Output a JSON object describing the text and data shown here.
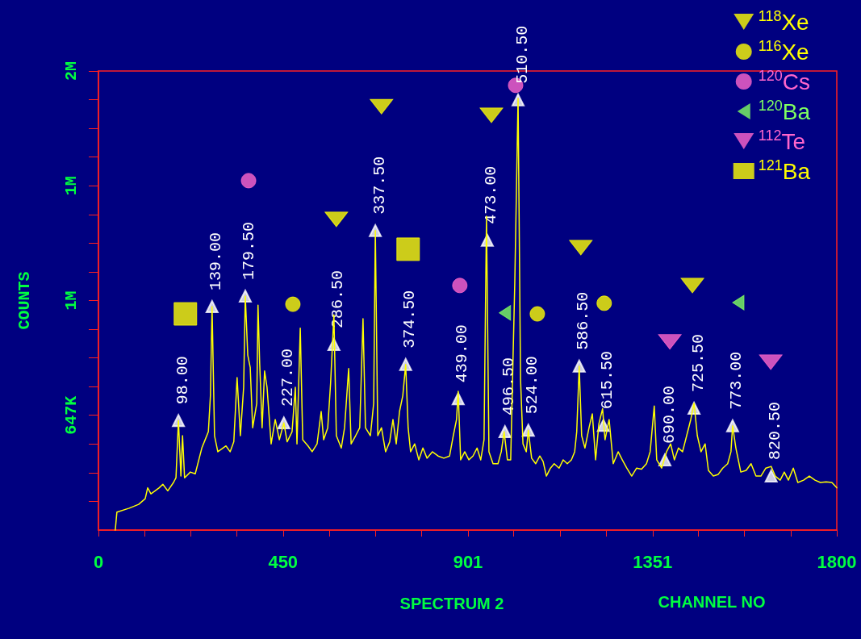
{
  "chart_data": {
    "type": "line",
    "xlabel": "CHANNEL NO",
    "ylabel": "COUNTS",
    "log": "y",
    "xlim": [
      0,
      1800
    ],
    "xticks": [
      0,
      {
        "value": 112.5,
        "label": null
      },
      {
        "value": 225,
        "label": null
      },
      {
        "value": 337.5,
        "label": null
      },
      450,
      {
        "value": 562.5,
        "label": null
      },
      {
        "value": 675,
        "label": null
      },
      {
        "value": 787.5,
        "label": null
      },
      901,
      {
        "value": 1012.5,
        "label": null
      },
      {
        "value": 1125,
        "label": null
      },
      {
        "value": 1237.5,
        "label": null
      },
      1351,
      {
        "value": 1462.5,
        "label": null
      },
      {
        "value": 1575,
        "label": null
      },
      {
        "value": 1687.5,
        "label": null
      },
      1800
    ],
    "ylim": [
      444000,
      2000000
    ],
    "yticks": [
      {
        "value": 487800,
        "label": null
      },
      {
        "value": 535900,
        "label": null
      },
      {
        "value": 588900,
        "label": null
      },
      {
        "value": 647000,
        "label": "647K"
      },
      {
        "value": 710800,
        "label": null
      },
      {
        "value": 780900,
        "label": null
      },
      {
        "value": 857900,
        "label": null
      },
      {
        "value": 942500,
        "label": "1M"
      },
      {
        "value": 1035400,
        "label": null
      },
      {
        "value": 1137500,
        "label": null
      },
      {
        "value": 1249700,
        "label": null
      },
      {
        "value": 1372900,
        "label": "1M"
      },
      {
        "value": 1508300,
        "label": null
      },
      {
        "value": 1657000,
        "label": null
      },
      {
        "value": 1820400,
        "label": null
      },
      {
        "value": 2000000,
        "label": "2M"
      }
    ],
    "grid": false,
    "legend": "top right",
    "series": [
      {
        "color": "#ffff00",
        "marker": "none",
        "line_style": "solid",
        "x": [
          41,
          45,
          75,
          98,
          114,
          120,
          128,
          148,
          157,
          169,
          183,
          189,
          195,
          201,
          205,
          210,
          224,
          236,
          252,
          268,
          273,
          277,
          283,
          291,
          311,
          321,
          330,
          338,
          346,
          354,
          358,
          364,
          370,
          376,
          386,
          389,
          393,
          399,
          405,
          411,
          421,
          431,
          441,
          452,
          460,
          472,
          480,
          484,
          492,
          498,
          511,
          521,
          533,
          543,
          549,
          559,
          566,
          574,
          580,
          592,
          600,
          610,
          616,
          627,
          637,
          645,
          651,
          663,
          671,
          675,
          681,
          690,
          700,
          710,
          718,
          726,
          734,
          742,
          749,
          755,
          761,
          771,
          781,
          791,
          801,
          814,
          828,
          842,
          856,
          865,
          873,
          877,
          883,
          893,
          903,
          913,
          923,
          932,
          940,
          946,
          952,
          962,
          974,
          982,
          989,
          997,
          1005,
          1015,
          1023,
          1029,
          1035,
          1043,
          1048,
          1056,
          1066,
          1076,
          1084,
          1092,
          1102,
          1111,
          1123,
          1133,
          1143,
          1153,
          1161,
          1166,
          1172,
          1178,
          1186,
          1196,
          1204,
          1212,
          1220,
          1229,
          1235,
          1245,
          1255,
          1267,
          1277,
          1288,
          1300,
          1312,
          1324,
          1336,
          1345,
          1355,
          1361,
          1373,
          1385,
          1395,
          1404,
          1414,
          1424,
          1434,
          1444,
          1452,
          1460,
          1469,
          1479,
          1487,
          1499,
          1511,
          1522,
          1534,
          1542,
          1546,
          1554,
          1566,
          1579,
          1591,
          1603,
          1615,
          1627,
          1640,
          1650,
          1662,
          1672,
          1682,
          1694,
          1705,
          1719,
          1733,
          1747,
          1760,
          1774,
          1788,
          1800
        ],
        "values": [
          444000,
          471000,
          477000,
          483000,
          492000,
          510000,
          500000,
          510000,
          516000,
          505000,
          519000,
          527000,
          636000,
          530000,
          605000,
          527000,
          537000,
          534000,
          581000,
          613000,
          690000,
          924000,
          605000,
          574000,
          585000,
          574000,
          593000,
          732000,
          605000,
          709000,
          956000,
          788000,
          757000,
          621000,
          673000,
          928000,
          768000,
          621000,
          748000,
          709000,
          589000,
          638000,
          597000,
          631000,
          593000,
          613000,
          709000,
          589000,
          861000,
          597000,
          585000,
          574000,
          589000,
          655000,
          597000,
          621000,
          719000,
          899000,
          605000,
          581000,
          621000,
          754000,
          589000,
          605000,
          621000,
          888000,
          621000,
          605000,
          673000,
          1185000,
          605000,
          621000,
          574000,
          593000,
          638000,
          589000,
          655000,
          690000,
          764000,
          621000,
          574000,
          589000,
          559000,
          581000,
          562000,
          574000,
          566000,
          562000,
          566000,
          605000,
          638000,
          700000,
          559000,
          574000,
          559000,
          566000,
          581000,
          559000,
          597000,
          1242000,
          574000,
          552000,
          552000,
          574000,
          613000,
          559000,
          559000,
          1000000,
          1828000,
          728000,
          589000,
          574000,
          616000,
          562000,
          552000,
          566000,
          556000,
          530000,
          544000,
          552000,
          544000,
          559000,
          552000,
          559000,
          574000,
          613000,
          760000,
          605000,
          581000,
          621000,
          650000,
          559000,
          629000,
          661000,
          597000,
          638000,
          552000,
          574000,
          559000,
          544000,
          530000,
          544000,
          542000,
          552000,
          574000,
          667000,
          559000,
          544000,
          574000,
          589000,
          559000,
          581000,
          574000,
          605000,
          638000,
          673000,
          605000,
          574000,
          589000,
          540000,
          530000,
          533000,
          544000,
          552000,
          574000,
          625000,
          581000,
          537000,
          540000,
          552000,
          530000,
          530000,
          544000,
          547000,
          530000,
          523000,
          537000,
          523000,
          544000,
          519000,
          523000,
          530000,
          523000,
          519000,
          520000,
          519000,
          510000
        ]
      },
      {
        "type": "scatter",
        "color": "#ffffff",
        "marker": "triangle",
        "x": [
          195,
          277,
          358,
          452,
          574,
          675,
          749,
          877,
          948,
          991,
          1023,
          1048,
          1172,
          1231,
          1381,
          1452,
          1546,
          1640
        ],
        "values": [
          636000,
          924000,
          956000,
          631000,
          816000,
          1185000,
          764000,
          683000,
          1148000,
          613000,
          1819000,
          616000,
          760000,
          626000,
          559000,
          662000,
          625000,
          530000
        ]
      },
      {
        "type": "scatter",
        "name": "$^{118}$Xe",
        "color": "#ffff00",
        "marker": "triangle-down",
        "x": [
          690,
          580,
          958,
          1176,
          1448
        ],
        "values": [
          1780000,
          1230000,
          1730000,
          1121000,
          990000
        ]
      },
      {
        "type": "scatter",
        "name": "$^{116}$Xe",
        "color": "#ffff00",
        "marker": "circle",
        "x": [
          474,
          1070,
          1233
        ],
        "values": [
          931000,
          902000,
          934000
        ]
      },
      {
        "type": "scatter",
        "name": "$^{120}$Cs",
        "color": "#ff66cc",
        "marker": "circle",
        "x": [
          366,
          881,
          1017
        ],
        "values": [
          1396000,
          990000,
          1908000
        ]
      },
      {
        "type": "scatter",
        "name": "$^{120}$Ba",
        "color": "#80ff60",
        "marker": "triangle-left",
        "x": [
          991,
          1560
        ],
        "values": [
          905000,
          936000
        ]
      },
      {
        "type": "scatter",
        "name": "$^{112}$Te",
        "color": "#ff66cc",
        "marker": "triangle-down",
        "x": [
          1393,
          1639
        ],
        "values": [
          823000,
          770000
        ]
      },
      {
        "type": "scatter",
        "name": "$^{121}$Ba",
        "color": "#ffff00",
        "marker": "square",
        "x": [
          212,
          755
        ],
        "values": [
          902000,
          1115000
        ]
      }
    ],
    "annotations": [
      {
        "text": "98.00",
        "x": 195,
        "y": 636000
      },
      {
        "text": "139.00",
        "x": 277,
        "y": 924000
      },
      {
        "text": "179.50",
        "x": 358,
        "y": 956000
      },
      {
        "text": "227.00",
        "x": 452,
        "y": 631000
      },
      {
        "text": "286.50",
        "x": 574,
        "y": 816000
      },
      {
        "text": "337.50",
        "x": 675,
        "y": 1185000
      },
      {
        "text": "374.50",
        "x": 749,
        "y": 764000
      },
      {
        "text": "439.00",
        "x": 877,
        "y": 683000
      },
      {
        "text": "473.00",
        "x": 948,
        "y": 1148000
      },
      {
        "text": "496.50",
        "x": 991,
        "y": 613000
      },
      {
        "text": "510.50",
        "x": 1023,
        "y": 1819000
      },
      {
        "text": "524.00",
        "x": 1048,
        "y": 616000
      },
      {
        "text": "586.50",
        "x": 1172,
        "y": 760000
      },
      {
        "text": "615.50",
        "x": 1231,
        "y": 626000
      },
      {
        "text": "690.00",
        "x": 1381,
        "y": 559000
      },
      {
        "text": "725.50",
        "x": 1452,
        "y": 662000
      },
      {
        "text": "773.00",
        "x": 1546,
        "y": 625000
      },
      {
        "text": "820.50",
        "x": 1640,
        "y": 530000
      },
      "SPECTRUM 2"
    ]
  }
}
